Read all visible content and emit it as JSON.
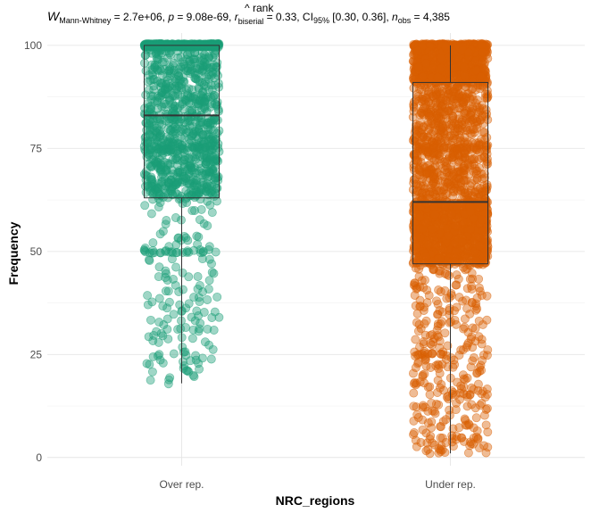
{
  "chart_data": {
    "type": "box-jitter",
    "subtitle": {
      "stat_symbol": "W",
      "stat_subscript": "Mann-Whitney",
      "stat_value": " = 2.7e+06, ",
      "p_symbol": "p",
      "p_value": " = 9.08e-69, ",
      "effect_symbol": "r",
      "effect_hat": "^",
      "effect_superscript": "rank",
      "effect_subscript": "biserial",
      "effect_value": " = 0.33, CI",
      "ci_subscript": "95%",
      "ci_value": " [0.30, 0.36], ",
      "n_symbol": "n",
      "n_subscript": "obs",
      "n_value": " = 4,385"
    },
    "xlabel": "NRC_regions",
    "ylabel": "Frequency",
    "categories": [
      "Over rep.",
      "Under rep."
    ],
    "ylim": [
      -2,
      103
    ],
    "yticks": [
      0,
      25,
      50,
      75,
      100
    ],
    "ytick_labels": [
      "0",
      "25",
      "50",
      "75",
      "100"
    ],
    "grid": true,
    "series": [
      {
        "category": "Over rep.",
        "color": "#1B9E77",
        "box": {
          "min": 18,
          "q1": 63,
          "median": 83,
          "q3": 100,
          "max": 100
        },
        "points": {
          "count": 1400,
          "heaps": [
            [
              100,
              0.08
            ],
            [
              75,
              0.02
            ],
            [
              50,
              0.015
            ]
          ],
          "low_outliers": [
            26,
            23,
            21,
            20,
            19,
            18,
            23,
            24,
            30,
            32
          ]
        }
      },
      {
        "category": "Under rep.",
        "color": "#D95F02",
        "box": {
          "min": 1,
          "q1": 47,
          "median": 62,
          "q3": 91,
          "max": 100
        },
        "points": {
          "count": 2985,
          "heaps": [
            [
              100,
              0.05
            ],
            [
              75,
              0.01
            ],
            [
              50,
              0.008
            ],
            [
              25,
              0.004
            ]
          ],
          "low_outliers": [
            1,
            2,
            3,
            4,
            5,
            8,
            9,
            10,
            12,
            13,
            15,
            16,
            17,
            18,
            20,
            22
          ]
        }
      }
    ]
  }
}
